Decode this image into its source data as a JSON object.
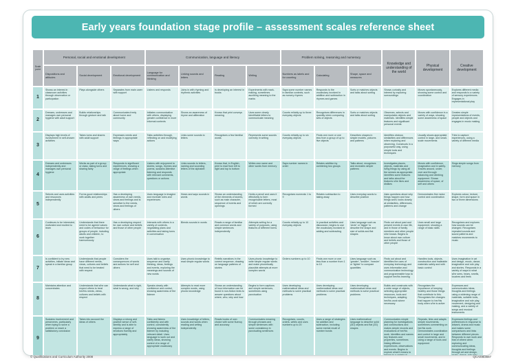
{
  "title": "Early years foundation stage profile – assessment scales reference sheet",
  "headers": {
    "scale_point": "Scale point",
    "personal_group": "Personal, social and emotional development",
    "communication_group": "Communication, language and literacy",
    "problem_group": "Problem solving, reasoning and numeracy",
    "knowledge": "Knowledge and understanding of the world",
    "physical": "Physical development",
    "creative": "Creative development",
    "sub": [
      "Dispositions and attitudes",
      "Social development",
      "Emotional development",
      "Language for communication and thinking",
      "Linking sounds and letters",
      "Reading",
      "Writing",
      "Numbers as labels and for counting",
      "Calculating",
      "Shape, space and measures"
    ]
  },
  "rows": [
    {
      "scale": "1",
      "cells": [
        "Shows an interest in classroom activities through observation or participation",
        "Plays alongside others",
        "Separates from main carer with support",
        "Listens and responds",
        "Joins in with rhyming and rhythmic activities",
        "Is developing an interest in books",
        "Experiments with mark-making, sometimes ascribing meaning to the marks",
        "Says some number names in familiar contexts, such as nursery rhymes",
        "Responds to the vocabulary involved in addition and subtraction in rhymes and games",
        "Sorts or matches objects and talks about sorting",
        "Shows curiosity and interest by exploring surroundings",
        "Moves spontaneously, showing some control and coordination",
        "Explores different media and responds to a variety of sensory experiences. Engages in representational play"
      ]
    },
    {
      "scale": "2",
      "cells": [
        "Dresses, undresses and manages own personal hygiene with adult support",
        "Builds relationships through gesture and talk",
        "Communicates freely about home and community",
        "Initiates communication with others, displaying greater confidence in more informal contexts",
        "Shows an awareness of rhyme and alliteration",
        "Knows that print conveys meaning",
        "Uses some clearly identifiable letters to communicate meaning",
        "Counts reliably up to three everyday objects",
        "Recognises differences in quantity when comparing sets of objects",
        "Sorts or matches objects and talks about sorting",
        "Observes, selects and manipulates objects and materials. Identifies simple features and significant personal events",
        "Moves with confidence in a variety of ways, showing some awareness of space",
        "Creates simple representations of events, people and objects and engages in music making"
      ]
    },
    {
      "scale": "3",
      "cells": [
        "Displays high levels of involvement in self-chosen activities",
        "Takes turns and shares with adult support",
        "Expresses needs and feelings in appropriate ways",
        "Talks activities through, reflecting on and modifying actions",
        "Links some sounds to letters",
        "Recognises a few familiar words",
        "Represents some sounds correctly in writing",
        "Counts reliably up to six everyday objects",
        "Finds one more or one less from a group of up to five objects",
        "Describes shapes in simple models, pictures and patterns",
        "Identifies obvious similarities and differences when exploring and observing. Constructs in a purposeful way, using simple tools and techniques",
        "Usually shows appropriate control in large- and small-scale movements",
        "Tries to capture experiences, using a variety of different media"
      ]
    },
    {
      "scale": "4",
      "cells": [
        "Dresses and undresses independently and manages own personal hygiene",
        "Works as part of a group or class, taking turns and sharing fairly",
        "Responds to significant experiences, showing a range of feelings when appropriate",
        "Listens with enjoyment to stories, songs, rhymes and poems, sustains attentive listening and responds with relevant comments, questions or actions",
        "Links sounds to letters, naming and sounding letters of the alphabet",
        "Knows that, in English, print is read from left to right and top to bottom",
        "Writes own name and other words from memory",
        "Says number names in order",
        "Relates addition by combining two groups",
        "Talks about, recognises and recreates simple patterns",
        "Investigates places, objects, materials and living things by using all the senses as appropriate. Identifies some features and talks about the features s/he likes and dislikes",
        "Moves with confidence, imagination and in safety. Travels around, under, over and through balancing and climbing equipment. Shows awareness of space, of self and others",
        "Sings simple songs from memory"
      ]
    },
    {
      "scale": "5",
      "cells": [
        "Selects and uses activities and resources independently",
        "Forms good relationships with adults and peers",
        "Has a developing awareness of own needs, views and feelings and is sensitive to the needs, views and feelings of others",
        "Uses language to imagine and recreate roles and experiences",
        "Hears and says sounds in words",
        "Shows an understanding of the elements of stories, such as main character, sequence of events and openings",
        "Holds a pencil and uses it effectively to form recognisable letters, most of which are correctly formed",
        "Recognises numerals 1 to 9",
        "Relates subtraction to taking away",
        "Uses everyday words to describe position",
        "Asks questions about why things happen and how things work; looks closely at similarities, differences, patterns and change",
        "Demonstrates fine motor control and coordination",
        "Explores colour, texture, shape, form and space in two or three dimensions"
      ]
    },
    {
      "scale": "6",
      "cells": [
        "Continues to be interested, motivated and excited to learn",
        "Understands that there need to be agreed values and codes of behaviour for groups of people, including adults and children, to work together harmoniously",
        "Has a developing respect for own culture and beliefs and those of other people",
        "Interacts with others in a variety of contexts, negotiating plans and activities and taking turns in conversation",
        "Blends sounds in words",
        "Reads a range of familiar and common words and simple sentences independently",
        "Attempts writing for a variety of purposes, using features of different forms",
        "Counts reliably up to 10 everyday objects",
        "In practical activities and discussion, begins to use the vocabulary involved in adding and subtracting",
        "Uses language such as 'circle' or 'bigger' to describe the shape and size of solids and flat shapes",
        "Finds out about past and present events in own life, and in those of family members and other people s/he knows. Begins to know about own culture and beliefs and those of other people",
        "Uses small and large equipment, showing a range of basic skills",
        "Recognises and explores how sounds can be changed. Recognises repeated sounds and sound patterns and matches movements to music"
      ]
    },
    {
      "scale": "7",
      "cells": [
        "Is confident to try new activities, initiate ideas and speak in a familiar group",
        "Understands that people have different needs, views, cultures and beliefs that need to be treated with respect",
        "Considers the consequences of words and actions for self and others",
        "Uses talk to organise, sequence and clarify thinking, ideas, feelings and events, exploring the meanings and sounds of new words",
        "Uses phonic knowledge to read simple regular words",
        "Retells narratives in the correct sequence, drawing on language patterns of stories",
        "Uses phonic knowledge to write simple regular words and make phonetically plausible attempts at more complex words",
        "Orders numbers up to 10",
        "Finds one more or one less than a number from 1 to 10",
        "Uses language such as 'greater', 'smaller', 'heavier' or 'lighter' to compare quantities",
        "Finds out about and identifies the uses of everyday technology and uses information and communication technology and programmable toys to support her/his learning",
        "Handles tools, objects, construction and malleable materials safely and with basic control",
        "Uses imagination in art and design, music, dance, imaginative and role play and stories. Responds in a variety of ways to what s/he sees, hears, smells, touches and feels"
      ]
    },
    {
      "scale": "8",
      "cells": [
        "Maintains attention and concentrates",
        "Understands that s/he can expect others to treat her/his needs, views, cultures and beliefs with respect",
        "Understands what is right, what is wrong, and why",
        "Speaks clearly with confidence and control, showing awareness of the listener",
        "Attempts to read more complex words, using phonic knowledge",
        "Shows an understanding of how information can be found in non-fiction texts to answer questions about where, who, why and how",
        "Begins to form captions and simple sentences, sometimes using punctuation",
        "Uses developing mathematical ideas and methods to solve practical problems",
        "Uses developing mathematical ideas and methods to solve practical problems",
        "Uses developing mathematical ideas and methods to solve practical problems",
        "Builds and constructs with a wide range of objects, selecting appropriate resources, tools and techniques, adapting her/his work where necessary",
        "Recognises the importance of keeping healthy and those things that contribute to this. Recognises the changes that happen to her/his body when s/he is active",
        "Expresses and communicates ideas, thoughts and feelings using a widening range of materials, suitable tools, imaginative and role play, movement, designing and making, and a variety of songs and musical instruments"
      ]
    },
    {
      "scale": "9",
      "cells": [
        "Sustains involvement and perseveres, particularly when trying to solve a problem or reach a satisfactory conclusion",
        "Takes into account the ideas of others",
        "Displays a strong and positive sense of self-identity and is able to express a range of emotions fluently and appropriately",
        "Talks and listens confidently and with control, consistently showing awareness of the listener by including relevant detail. Uses language to work out and clarify ideas, showing control of a range of appropriate vocabulary",
        "Uses knowledge of letters, sounds and words when reading and writing independently",
        "Reads books of own choice with some fluency and accuracy",
        "Communicates meaning through phrases and simple sentences with some consistency in punctuating sentences",
        "Recognises, counts, orders, writes and uses numbers up to 20",
        "Uses a range of strategies for addition and subtraction, including some mental recall of number bonds",
        "Uses mathematical language to describe solid (3D) objects and flat (2D) shapes",
        "Communicates simple planning for investigations and constructions and makes simple records and evaluations of her/his work. Identifies and names key features and properties, sometimes linking different experiences, observations and events. Begins to explore what it means to belong to a variety of groups and communities",
        "Repeats, links and adapts simple movements, sometimes commenting on her/his work. Demonstrates coordination and control in large and small movements, and in using a range of tools and equipment",
        "Expresses feelings and preferences in response to artwork, drama and music and makes some comparisons and links between different pieces. Responds to own work and that of others when exploring and communicating ideas, thoughts and feelings through art and design, music, dance, role play and imaginative play"
      ]
    }
  ],
  "footer": {
    "left": "© Qualifications and Curriculum Authority 2008",
    "right": "QCA/08/3657"
  }
}
